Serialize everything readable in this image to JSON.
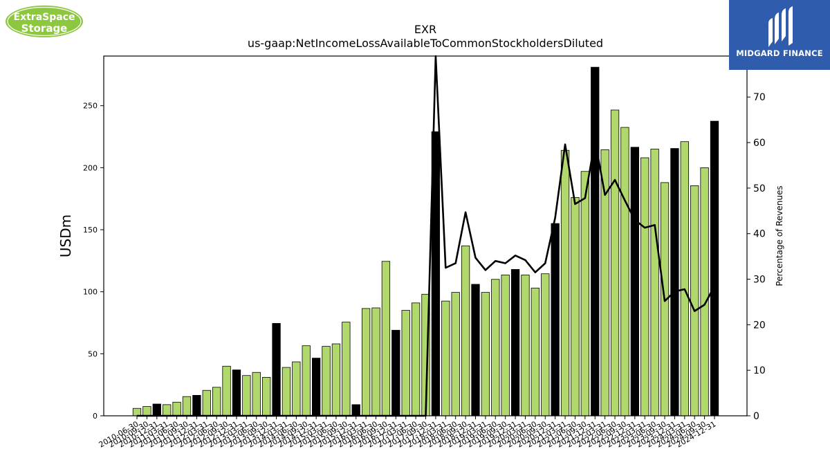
{
  "logos": {
    "left_line1": "ExtraSpace",
    "left_line2": "Storage",
    "right_text": "MIDGARD FINANCE"
  },
  "colors": {
    "bar_green": "#b0d86c",
    "bar_black": "#000000",
    "line": "#000000",
    "logo_green": "#8dc63f",
    "logo_blue": "#2f5cad"
  },
  "chart_data": {
    "type": "bar",
    "title": "EXR",
    "subtitle": "us-gaap:NetIncomeLossAvailableToCommonStockholdersDiluted",
    "ylabel": "USDm",
    "y2label": "Percentage of Revenues",
    "ylim": [
      0,
      290
    ],
    "y2lim": [
      0,
      79
    ],
    "yticks": [
      0,
      50,
      100,
      150,
      200,
      250
    ],
    "y2ticks": [
      0,
      10,
      20,
      30,
      40,
      50,
      60,
      70
    ],
    "categories": [
      "2010-06-30",
      "2010-09-30",
      "2010-12-31",
      "2011-03-31",
      "2011-06-30",
      "2011-09-30",
      "2011-12-31",
      "2012-03-31",
      "2012-06-30",
      "2012-09-30",
      "2012-12-31",
      "2013-03-31",
      "2013-06-30",
      "2013-09-30",
      "2013-12-31",
      "2014-03-31",
      "2014-06-30",
      "2014-09-30",
      "2014-12-31",
      "2015-03-31",
      "2015-06-30",
      "2015-09-30",
      "2015-12-31",
      "2016-03-31",
      "2016-06-30",
      "2016-09-30",
      "2016-12-31",
      "2017-03-31",
      "2017-06-30",
      "2017-09-30",
      "2017-12-31",
      "2018-03-31",
      "2018-06-30",
      "2018-09-30",
      "2018-12-31",
      "2019-03-31",
      "2019-06-30",
      "2019-09-30",
      "2019-12-31",
      "2020-03-31",
      "2020-06-30",
      "2020-09-30",
      "2020-12-31",
      "2021-03-31",
      "2021-06-30",
      "2021-09-30",
      "2021-12-31",
      "2022-03-31",
      "2022-06-30",
      "2022-09-30",
      "2022-12-31",
      "2023-03-31",
      "2023-06-30",
      "2023-09-30",
      "2023-12-31",
      "2024-03-31",
      "2024-06-30",
      "2024-09-30",
      "2024-12-31"
    ],
    "tick_labels": [
      "2010-06-30",
      "2010-09-30",
      "2010-12-31",
      "2011-03-31",
      "2011-06-30",
      "2011-09-30",
      "2011-12-31",
      "2012-03-31",
      "2012-06-30",
      "2012-09-30",
      "2012-12-31",
      "2013-03-31",
      "2013-06-30",
      "2013-09-30",
      "2013-12-31",
      "2014-03-31",
      "2014-06-30",
      "2014-09-30",
      "2014-12-31",
      "2015-03-31",
      "2015-06-30",
      "2015-09-30",
      "2015-12-31",
      "2016-03-31",
      "2016-06-30",
      "2016-09-30",
      "2016-12-31",
      "2017-03-31",
      "2017-06-30",
      "2017-09-30",
      "2017-12-31",
      "2018-03-31",
      "2018-06-30",
      "2018-09-30",
      "2018-12-31",
      "2019-03-31",
      "2019-06-30",
      "2019-09-30",
      "2019-12-31",
      "2020-03-31",
      "2020-06-30",
      "2020-09-30",
      "2020-12-31",
      "2021-03-31",
      "2021-06-30",
      "2021-09-30",
      "2021-12-31",
      "2022-03-31",
      "2022-06-30",
      "2022-09-30",
      "2022-12-31",
      "2023-03-31",
      "2023-06-30",
      "2023-09-30",
      "2023-12-31",
      "2024-03-31",
      "2024-06-30",
      "2024-09-30",
      "2024-12-31"
    ],
    "values": [
      6,
      7.5,
      9.5,
      9,
      11,
      15.5,
      16.5,
      20.5,
      23,
      40,
      37,
      32.5,
      35,
      31,
      74.5,
      39,
      43.5,
      56.5,
      46.5,
      56,
      58,
      75.5,
      9,
      86.5,
      87,
      124.5,
      69,
      85,
      91,
      98,
      229,
      92.5,
      99.5,
      137,
      106,
      99.5,
      110,
      113.5,
      118,
      113.5,
      103,
      114.5,
      155,
      214,
      176,
      197,
      281,
      214.5,
      246.5,
      232.5,
      216.5,
      208,
      215,
      188,
      215.5,
      221,
      185.5,
      200,
      237.5
    ],
    "highlight": [
      false,
      false,
      true,
      false,
      false,
      false,
      true,
      false,
      false,
      false,
      true,
      false,
      false,
      false,
      true,
      false,
      false,
      false,
      true,
      false,
      false,
      false,
      true,
      false,
      false,
      false,
      true,
      false,
      false,
      false,
      true,
      false,
      false,
      false,
      true,
      false,
      false,
      false,
      true,
      false,
      false,
      false,
      true,
      false,
      false,
      false,
      true,
      false,
      false,
      false,
      true,
      false,
      false,
      false,
      true,
      false,
      false,
      false,
      true
    ],
    "line_values": [
      0,
      0,
      0,
      0,
      0,
      0,
      0,
      0,
      0,
      0,
      0,
      0,
      0,
      0,
      0,
      0,
      0,
      0,
      0,
      0,
      0,
      0,
      0,
      0,
      0,
      0,
      0,
      0,
      0,
      0,
      79,
      32.5,
      33.5,
      44.7,
      34.7,
      32,
      34,
      33.5,
      35.2,
      34.2,
      31.5,
      33.5,
      43.5,
      59.6,
      46.5,
      47.8,
      60.5,
      48.5,
      51.8,
      47.3,
      43,
      41.3,
      41.9,
      25.2,
      27.3,
      27.8,
      23,
      24.4,
      28.5
    ],
    "grid": false,
    "legend": "none"
  }
}
